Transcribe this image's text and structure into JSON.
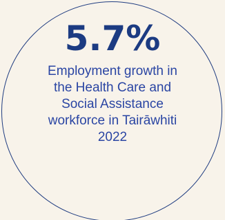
{
  "stat": {
    "value": "5.7%"
  },
  "description": {
    "lines": [
      "Employment growth in",
      "the Health Care and",
      "Social Assistance",
      "workforce in Tairāwhiti",
      "2022"
    ]
  },
  "colors": {
    "background": "#f8f3ea",
    "primary": "#1c3b82",
    "text": "#2a45a3"
  }
}
